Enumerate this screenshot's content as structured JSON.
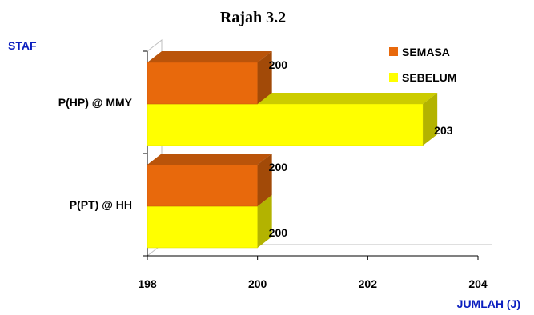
{
  "chart_data": {
    "type": "bar",
    "orientation": "horizontal",
    "three_d": true,
    "title": "Rajah 3.2",
    "ylabel": "STAF",
    "xlabel": "JUMLAH (J)",
    "categories": [
      "P(PT) @ HH",
      "P(HP) @ MMY"
    ],
    "series": [
      {
        "name": "SEMASA",
        "values": [
          200,
          200
        ],
        "color": "#e8690c"
      },
      {
        "name": "SEBELUM",
        "values": [
          200,
          203
        ],
        "color": "#ffff00"
      }
    ],
    "xlim": [
      198,
      204
    ],
    "xticks": [
      198,
      200,
      202,
      204
    ],
    "legend_position": "top-right",
    "grid": false
  }
}
